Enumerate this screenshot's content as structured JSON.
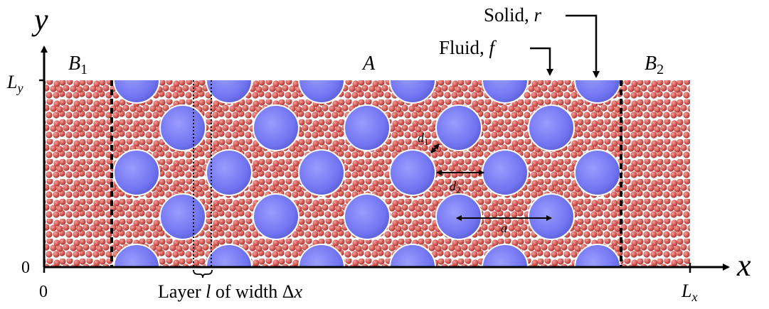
{
  "axes": {
    "y_label": "y",
    "x_label": "x",
    "y_top": {
      "main": "L",
      "sub": "y"
    },
    "y_origin": "0",
    "x_origin": "0",
    "x_end": {
      "main": "L",
      "sub": "x"
    }
  },
  "regions": {
    "left": {
      "main": "B",
      "sub": "1"
    },
    "middle": "A",
    "right": {
      "main": "B",
      "sub": "2"
    }
  },
  "annotations": {
    "fluid": {
      "text": "Fluid, ",
      "symbol": "f"
    },
    "solid": {
      "text": "Solid, ",
      "symbol": "r"
    },
    "d1": {
      "main": "d",
      "sub": "1"
    },
    "d2": {
      "main": "d",
      "sub": "2"
    },
    "a": "a",
    "layer": {
      "pre": "Layer ",
      "symbol": "l",
      "mid": " of width ",
      "delta": "Δ",
      "var": "x"
    }
  }
}
